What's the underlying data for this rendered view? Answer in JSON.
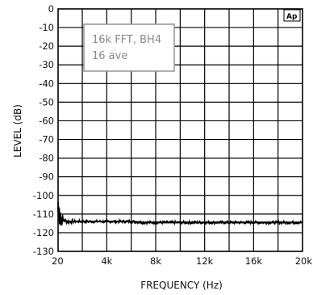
{
  "chart_data": {
    "type": "line",
    "xlabel": "FREQUENCY (Hz)",
    "ylabel": "LEVEL (dB)",
    "xlim": [
      20,
      20000
    ],
    "ylim": [
      -130,
      0
    ],
    "x_ticks": [
      {
        "value": 20,
        "label": "20"
      },
      {
        "value": 4000,
        "label": "4k"
      },
      {
        "value": 8000,
        "label": "8k"
      },
      {
        "value": 12000,
        "label": "12k"
      },
      {
        "value": 16000,
        "label": "16k"
      },
      {
        "value": 20000,
        "label": "20k"
      }
    ],
    "y_ticks": [
      0,
      -10,
      -20,
      -30,
      -40,
      -50,
      -60,
      -70,
      -80,
      -90,
      -100,
      -110,
      -120,
      -130
    ],
    "x_gridlines": [
      2000,
      4000,
      6000,
      8000,
      10000,
      12000,
      14000,
      16000,
      18000
    ],
    "grid": true,
    "annotation": [
      "16k FFT, BH4",
      "16 ave"
    ],
    "logo": "Ap",
    "series": [
      {
        "color": "#000000",
        "x": [
          20,
          50,
          80,
          120,
          160,
          200,
          250,
          300,
          400,
          500,
          600,
          800,
          1000,
          1500,
          2000,
          3000,
          4000,
          5000,
          6000,
          7000,
          8000,
          9000,
          10000,
          11000,
          12000,
          13000,
          14000,
          15000,
          16000,
          17000,
          18000,
          19000,
          20000
        ],
        "y": [
          -106,
          -109,
          -110,
          -111,
          -111.5,
          -112,
          -112.5,
          -113,
          -113,
          -113.5,
          -113.5,
          -114,
          -114,
          -114,
          -114,
          -114,
          -114,
          -114,
          -114,
          -114.5,
          -114.5,
          -114.5,
          -114.5,
          -114.5,
          -114.5,
          -114.5,
          -114.5,
          -114.5,
          -114.5,
          -114.5,
          -114.5,
          -114.5,
          -114.5
        ]
      }
    ]
  }
}
